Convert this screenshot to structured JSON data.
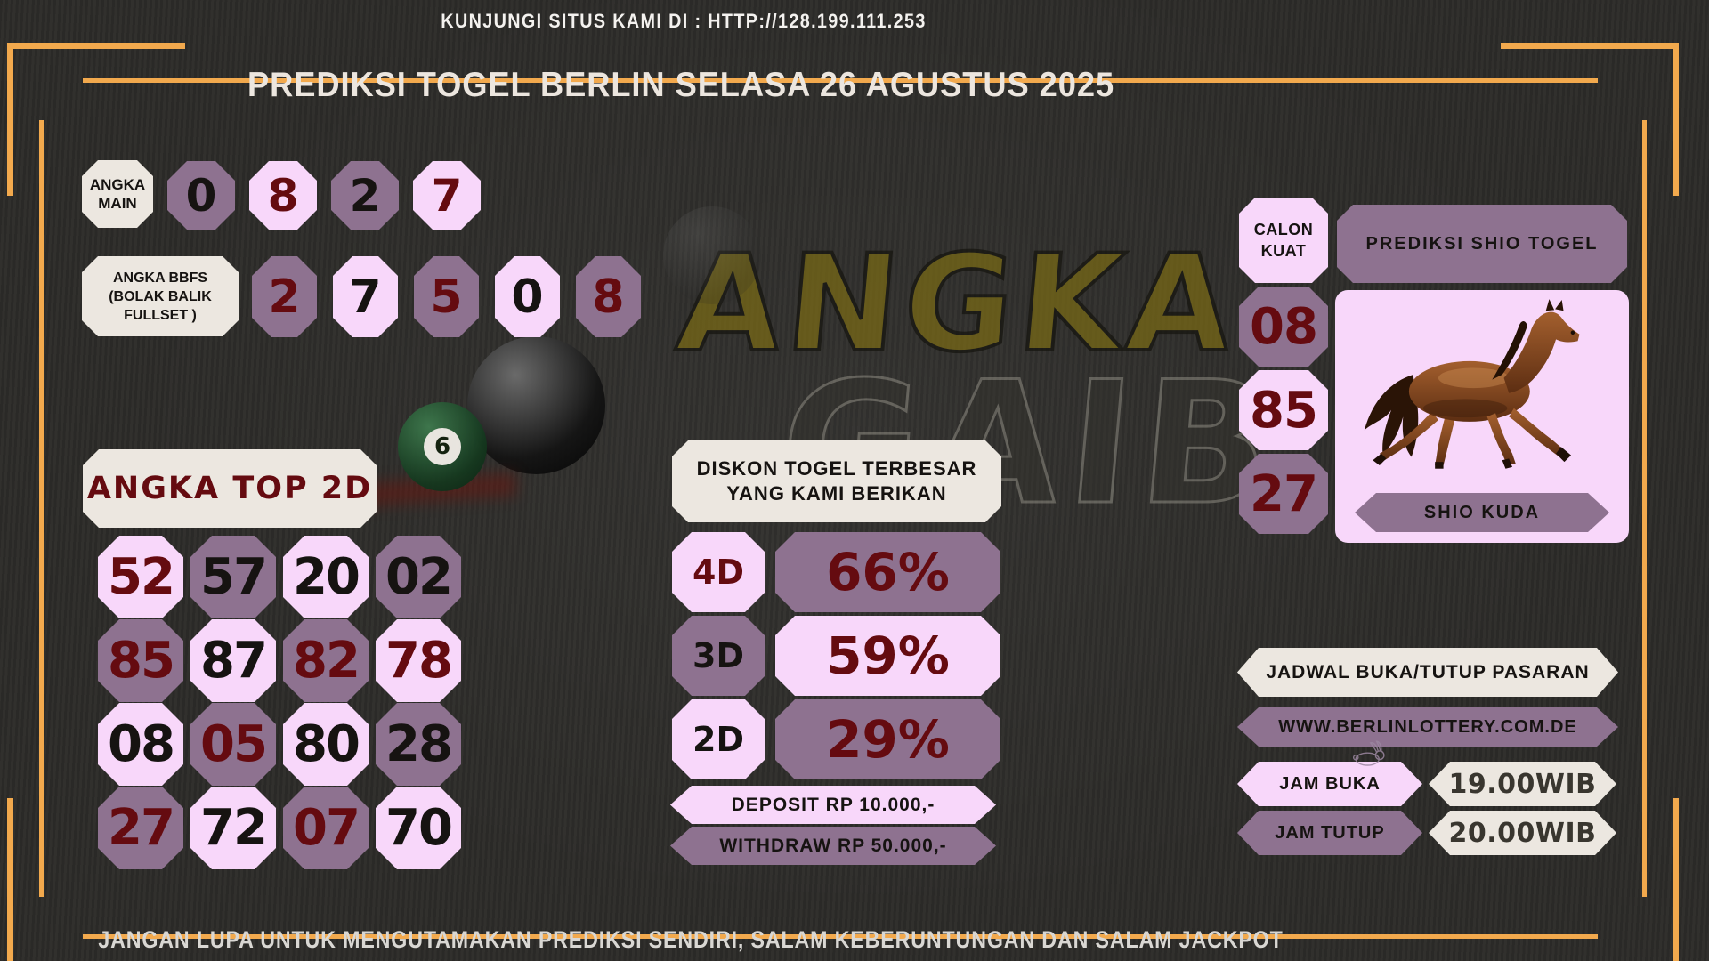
{
  "page": {
    "header_url": "KUNJUNGI SITUS KAMI DI : HTTP://128.199.111.253",
    "title": "PREDIKSI TOGEL BERLIN SELASA 26 AGUSTUS 2025",
    "footer": "JANGAN LUPA UNTUK MENGUTAMAKAN PREDIKSI SENDIRI, SALAM KEBERUNTUNGAN DAN SALAM JACKPOT"
  },
  "colors": {
    "background": "#2f2e2b",
    "orange": "#f2a94d",
    "cream": "#ece7e0",
    "pink": "#f8d7fa",
    "purple": "#8e7290",
    "maroon": "#650b10",
    "black": "#161311"
  },
  "angka_main": {
    "label": "ANGKA\nMAIN",
    "digits": [
      {
        "value": "0",
        "bg": "purple",
        "fg": "black"
      },
      {
        "value": "8",
        "bg": "pink",
        "fg": "maroon"
      },
      {
        "value": "2",
        "bg": "purple",
        "fg": "black"
      },
      {
        "value": "7",
        "bg": "pink",
        "fg": "maroon"
      }
    ]
  },
  "angka_bbfs": {
    "label": "ANGKA BBFS\n(BOLAK BALIK\nFULLSET )",
    "digits": [
      {
        "value": "2",
        "bg": "purple",
        "fg": "maroon"
      },
      {
        "value": "7",
        "bg": "pink",
        "fg": "black"
      },
      {
        "value": "5",
        "bg": "purple",
        "fg": "maroon"
      },
      {
        "value": "0",
        "bg": "pink",
        "fg": "black"
      },
      {
        "value": "8",
        "bg": "purple",
        "fg": "maroon"
      }
    ]
  },
  "angka_top_2d": {
    "title": "ANGKA TOP 2D",
    "cells": [
      {
        "value": "52",
        "bg": "pink",
        "fg": "maroon"
      },
      {
        "value": "57",
        "bg": "purple",
        "fg": "black"
      },
      {
        "value": "20",
        "bg": "pink",
        "fg": "black"
      },
      {
        "value": "02",
        "bg": "purple",
        "fg": "black"
      },
      {
        "value": "85",
        "bg": "purple",
        "fg": "maroon"
      },
      {
        "value": "87",
        "bg": "pink",
        "fg": "black"
      },
      {
        "value": "82",
        "bg": "purple",
        "fg": "maroon"
      },
      {
        "value": "78",
        "bg": "pink",
        "fg": "maroon"
      },
      {
        "value": "08",
        "bg": "pink",
        "fg": "black"
      },
      {
        "value": "05",
        "bg": "purple",
        "fg": "maroon"
      },
      {
        "value": "80",
        "bg": "pink",
        "fg": "black"
      },
      {
        "value": "28",
        "bg": "purple",
        "fg": "black"
      },
      {
        "value": "27",
        "bg": "purple",
        "fg": "maroon"
      },
      {
        "value": "72",
        "bg": "pink",
        "fg": "black"
      },
      {
        "value": "07",
        "bg": "purple",
        "fg": "maroon"
      },
      {
        "value": "70",
        "bg": "pink",
        "fg": "black"
      }
    ]
  },
  "diskon": {
    "title": "DISKON TOGEL TERBESAR\nYANG KAMI BERIKAN",
    "rows": [
      {
        "label": "4D",
        "percent": "66%",
        "label_bg": "pink",
        "label_fg": "maroon",
        "value_bg": "purple"
      },
      {
        "label": "3D",
        "percent": "59%",
        "label_bg": "purple",
        "label_fg": "black",
        "value_bg": "pink"
      },
      {
        "label": "2D",
        "percent": "29%",
        "label_bg": "pink",
        "label_fg": "black",
        "value_bg": "purple"
      }
    ],
    "deposit": "DEPOSIT RP 10.000,-",
    "withdraw": "WITHDRAW RP 50.000,-"
  },
  "shio": {
    "calon_kuat": "CALON\nKUAT",
    "panel_title": "PREDIKSI SHIO TOGEL",
    "numbers": [
      {
        "value": "08",
        "bg": "purple",
        "fg": "maroon"
      },
      {
        "value": "85",
        "bg": "pink",
        "fg": "maroon"
      },
      {
        "value": "27",
        "bg": "purple",
        "fg": "maroon"
      }
    ],
    "shio_label": "SHIO KUDA",
    "shio_animal": "horse"
  },
  "jadwal": {
    "title": "JADWAL BUKA/TUTUP PASARAN",
    "website": "WWW.BERLINLOTTERY.COM.DE",
    "rows": [
      {
        "label": "JAM BUKA",
        "value": "19.00WIB",
        "label_bg": "pink"
      },
      {
        "label": "JAM TUTUP",
        "value": "20.00WIB",
        "label_bg": "purple"
      }
    ]
  },
  "watermark": {
    "line1": "ANGKA",
    "line2": "GAIB",
    "ball_number": "6"
  }
}
